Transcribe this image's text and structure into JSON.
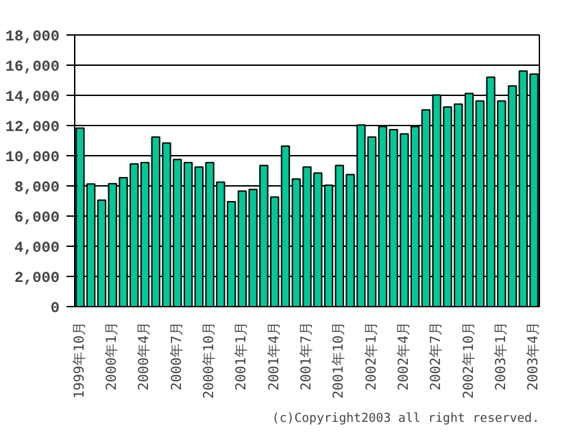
{
  "chart_data": {
    "type": "bar",
    "categories": [
      "1999年10月",
      null,
      null,
      "2000年1月",
      null,
      null,
      "2000年4月",
      null,
      null,
      "2000年7月",
      null,
      null,
      "2000年10月",
      null,
      null,
      "2001年1月",
      null,
      null,
      "2001年4月",
      null,
      null,
      "2001年7月",
      null,
      null,
      "2001年10月",
      null,
      null,
      "2002年1月",
      null,
      null,
      "2002年4月",
      null,
      null,
      "2002年7月",
      null,
      null,
      "2002年10月",
      null,
      null,
      "2003年1月",
      null,
      null,
      "2003年4月"
    ],
    "values": [
      11830,
      8120,
      7060,
      8150,
      8550,
      9450,
      9550,
      11240,
      10840,
      9750,
      9550,
      9250,
      9550,
      8250,
      6960,
      7660,
      7760,
      9350,
      7260,
      10640,
      8450,
      9250,
      8850,
      8050,
      9350,
      8750,
      12030,
      11240,
      11930,
      11730,
      11440,
      11930,
      13030,
      14020,
      13230,
      13420,
      14120,
      13620,
      15210,
      13620,
      14620,
      15610,
      15410
    ],
    "color": "#00c896",
    "ylim": [
      0,
      18000
    ],
    "yticks": [
      0,
      {
        "value": 2000,
        "label": "2,000"
      },
      {
        "value": 4000,
        "label": "4,000"
      },
      {
        "value": 6000,
        "label": "6,000"
      },
      {
        "value": 8000,
        "label": "8,000"
      },
      {
        "value": 10000,
        "label": "10,000"
      },
      {
        "value": 12000,
        "label": "12,000"
      },
      {
        "value": 14000,
        "label": "14,000"
      },
      {
        "value": 16000,
        "label": "16,000"
      },
      {
        "value": 18000,
        "label": "18,000"
      }
    ],
    "grid": "y",
    "annotations": [
      "(c)Copyright2003 all right reserved."
    ]
  }
}
